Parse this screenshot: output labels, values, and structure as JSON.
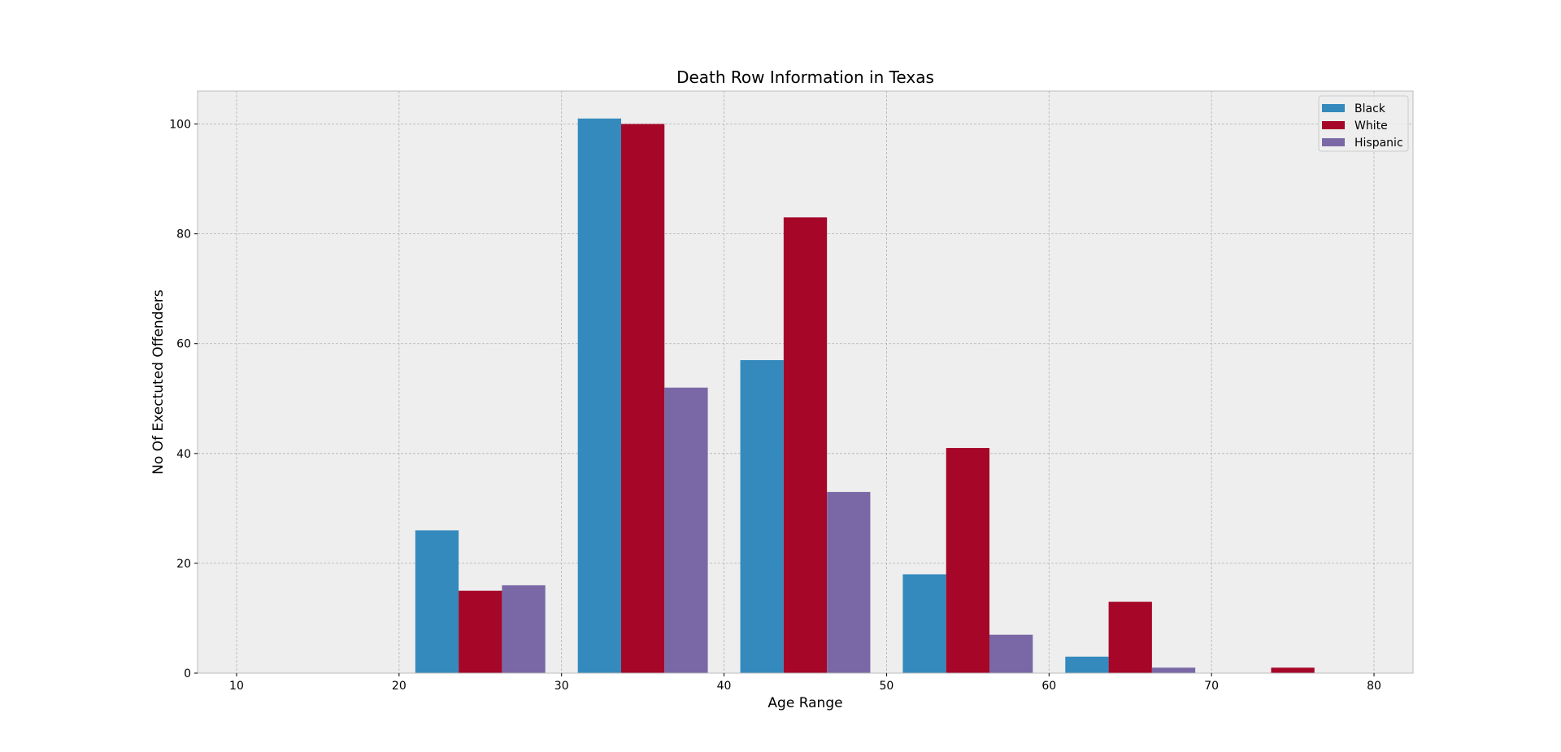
{
  "chart_data": {
    "type": "bar",
    "title": "Death Row Information in Texas",
    "xlabel": "Age Range",
    "ylabel": "No Of Exectuted Offenders",
    "xlim": [
      7.6,
      82.4
    ],
    "ylim": [
      0,
      106
    ],
    "xticks": [
      10,
      20,
      30,
      40,
      50,
      60,
      70,
      80
    ],
    "yticks": [
      0,
      20,
      40,
      60,
      80,
      100
    ],
    "grid": true,
    "legend_position": "top-right",
    "bin_edges": [
      10,
      20,
      30,
      40,
      50,
      60,
      70,
      80
    ],
    "series": [
      {
        "name": "Black",
        "color": "#348abd",
        "values": [
          0,
          26,
          101,
          57,
          18,
          3,
          0
        ]
      },
      {
        "name": "White",
        "color": "#a60628",
        "values": [
          0,
          15,
          100,
          83,
          41,
          13,
          1
        ]
      },
      {
        "name": "Hispanic",
        "color": "#7a68a6",
        "values": [
          0,
          16,
          52,
          33,
          7,
          1,
          0
        ]
      }
    ]
  }
}
